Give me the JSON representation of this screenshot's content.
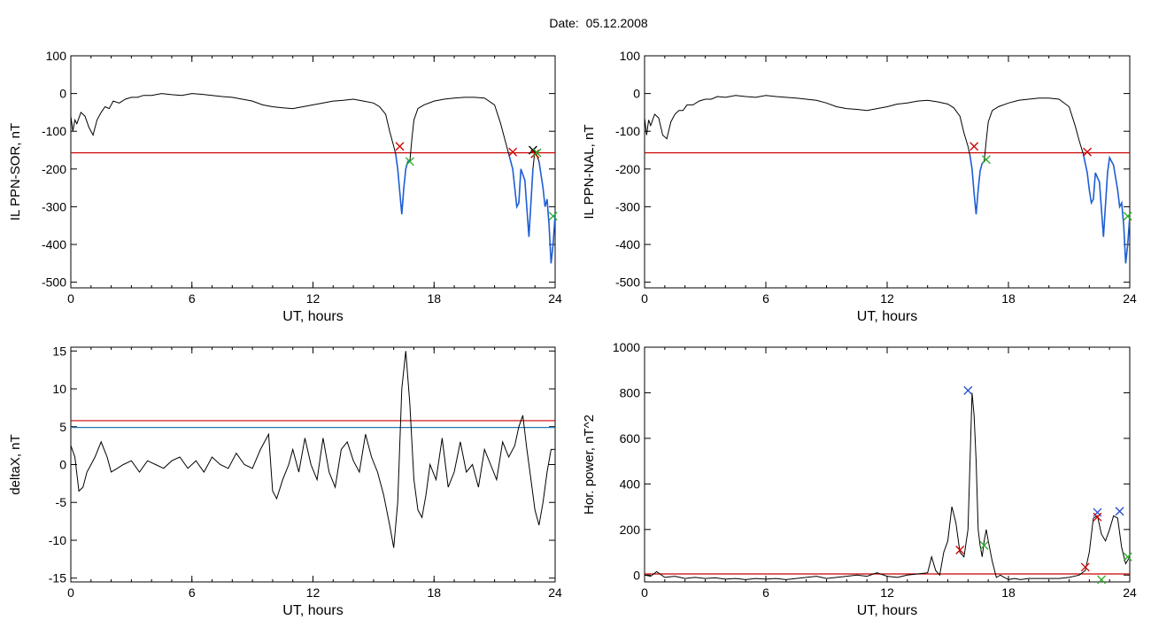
{
  "page": {
    "title": "Date:  05.12.2008"
  },
  "chart_data": [
    {
      "id": "p1",
      "type": "line",
      "xlabel": "UT, hours",
      "ylabel": "IL PPN-SOR, nT",
      "xlim": [
        0,
        24
      ],
      "ylim": [
        -515,
        100
      ],
      "xticks": [
        0,
        6,
        12,
        18,
        24
      ],
      "yticks": [
        -500,
        -400,
        -300,
        -200,
        -100,
        0,
        100
      ],
      "threshold_lines": [
        {
          "y": -157,
          "color": "#cc0000"
        }
      ],
      "series": [
        {
          "color": "#000000",
          "x": [
            0,
            0.1,
            0.2,
            0.3,
            0.5,
            0.7,
            0.9,
            1.1,
            1.3,
            1.5,
            1.7,
            1.9,
            2.1,
            2.4,
            2.7,
            3.0,
            3.3,
            3.6,
            4.0,
            4.5,
            5.0,
            5.5,
            6.0,
            6.5,
            7.0,
            7.5,
            8.0,
            8.5,
            9.0,
            9.5,
            10.0,
            10.5,
            11.0,
            11.5,
            12.0,
            12.5,
            13.0,
            13.5,
            14.0,
            14.5,
            15.0,
            15.3,
            15.6,
            15.8,
            16.0,
            16.1,
            16.2,
            16.3,
            16.4,
            16.5,
            16.6,
            16.7,
            16.8,
            16.9,
            17.0,
            17.2,
            17.5,
            18.0,
            18.5,
            19.0,
            19.5,
            20.0,
            20.5,
            21.0,
            21.3,
            21.5,
            21.7,
            21.9,
            22.0,
            22.1,
            22.2,
            22.3,
            22.5,
            22.7,
            22.9,
            23.0,
            23.2,
            23.4,
            23.5,
            23.6,
            23.7,
            23.8,
            23.9,
            24.0
          ],
          "y": [
            -60,
            -100,
            -70,
            -80,
            -50,
            -60,
            -90,
            -110,
            -70,
            -50,
            -35,
            -40,
            -20,
            -25,
            -15,
            -10,
            -10,
            -5,
            -5,
            0,
            -3,
            -5,
            0,
            -2,
            -5,
            -8,
            -10,
            -15,
            -20,
            -30,
            -35,
            -38,
            -40,
            -35,
            -30,
            -25,
            -20,
            -18,
            -15,
            -20,
            -25,
            -35,
            -55,
            -100,
            -140,
            -160,
            -200,
            -260,
            -320,
            -250,
            -200,
            -180,
            -180,
            -120,
            -70,
            -40,
            -30,
            -20,
            -15,
            -12,
            -10,
            -10,
            -12,
            -30,
            -80,
            -120,
            -160,
            -200,
            -250,
            -300,
            -290,
            -200,
            -230,
            -380,
            -200,
            -150,
            -180,
            -250,
            -300,
            -280,
            -350,
            -450,
            -400,
            -320
          ]
        }
      ],
      "markers": [
        {
          "x": 16.3,
          "y": -140,
          "color": "#cc0000"
        },
        {
          "x": 16.8,
          "y": -180,
          "color": "#22aa22"
        },
        {
          "x": 21.9,
          "y": -155,
          "color": "#cc0000"
        },
        {
          "x": 22.9,
          "y": -150,
          "color": "#000000"
        },
        {
          "x": 23.0,
          "y": -160,
          "color": "#cc0000"
        },
        {
          "x": 23.1,
          "y": -157,
          "color": "#22aa22"
        },
        {
          "x": 23.9,
          "y": -325,
          "color": "#22aa22"
        }
      ]
    },
    {
      "id": "p2",
      "type": "line",
      "xlabel": "UT, hours",
      "ylabel": "IL PPN-NAL, nT",
      "xlim": [
        0,
        24
      ],
      "ylim": [
        -515,
        100
      ],
      "xticks": [
        0,
        6,
        12,
        18,
        24
      ],
      "yticks": [
        -500,
        -400,
        -300,
        -200,
        -100,
        0,
        100
      ],
      "threshold_lines": [
        {
          "y": -157,
          "color": "#cc0000"
        }
      ],
      "series": [
        {
          "color": "#000000",
          "x": [
            0,
            0.1,
            0.2,
            0.3,
            0.5,
            0.7,
            0.9,
            1.1,
            1.3,
            1.5,
            1.7,
            1.9,
            2.1,
            2.4,
            2.7,
            3.0,
            3.3,
            3.6,
            4.0,
            4.5,
            5.0,
            5.5,
            6.0,
            6.5,
            7.0,
            7.5,
            8.0,
            8.5,
            9.0,
            9.5,
            10.0,
            10.5,
            11.0,
            11.5,
            12.0,
            12.5,
            13.0,
            13.5,
            14.0,
            14.5,
            15.0,
            15.3,
            15.6,
            15.8,
            16.0,
            16.1,
            16.2,
            16.3,
            16.4,
            16.5,
            16.6,
            16.7,
            16.8,
            16.9,
            17.0,
            17.2,
            17.5,
            18.0,
            18.5,
            19.0,
            19.5,
            20.0,
            20.5,
            21.0,
            21.3,
            21.5,
            21.7,
            21.9,
            22.0,
            22.1,
            22.2,
            22.3,
            22.5,
            22.7,
            22.9,
            23.0,
            23.2,
            23.4,
            23.5,
            23.6,
            23.7,
            23.8,
            23.9,
            24.0
          ],
          "y": [
            -65,
            -110,
            -70,
            -85,
            -55,
            -65,
            -110,
            -120,
            -75,
            -55,
            -45,
            -45,
            -30,
            -30,
            -20,
            -15,
            -15,
            -8,
            -10,
            -5,
            -8,
            -10,
            -5,
            -8,
            -10,
            -12,
            -15,
            -18,
            -25,
            -35,
            -40,
            -42,
            -45,
            -40,
            -35,
            -28,
            -25,
            -20,
            -18,
            -22,
            -28,
            -38,
            -60,
            -105,
            -140,
            -165,
            -200,
            -265,
            -320,
            -255,
            -205,
            -185,
            -180,
            -125,
            -75,
            -45,
            -35,
            -25,
            -18,
            -15,
            -12,
            -12,
            -15,
            -35,
            -85,
            -125,
            -160,
            -210,
            -255,
            -290,
            -280,
            -210,
            -235,
            -380,
            -210,
            -170,
            -190,
            -255,
            -300,
            -290,
            -350,
            -450,
            -400,
            -325
          ]
        }
      ],
      "markers": [
        {
          "x": 16.3,
          "y": -140,
          "color": "#cc0000"
        },
        {
          "x": 16.9,
          "y": -175,
          "color": "#22aa22"
        },
        {
          "x": 21.9,
          "y": -155,
          "color": "#cc0000"
        },
        {
          "x": 23.9,
          "y": -325,
          "color": "#22aa22"
        }
      ]
    },
    {
      "id": "p3",
      "type": "line",
      "xlabel": "UT, hours",
      "ylabel": "deltaX, nT",
      "xlim": [
        0,
        24
      ],
      "ylim": [
        -15.5,
        15.5
      ],
      "xticks": [
        0,
        6,
        12,
        18,
        24
      ],
      "yticks": [
        -15,
        -10,
        -5,
        0,
        5,
        10,
        15
      ],
      "threshold_lines": [
        {
          "y": 5.8,
          "color": "#cc0000"
        },
        {
          "y": 4.9,
          "color": "#1f77b4"
        }
      ],
      "series": [
        {
          "color": "#000000",
          "x": [
            0,
            0.2,
            0.4,
            0.6,
            0.8,
            1.0,
            1.2,
            1.5,
            1.8,
            2.0,
            2.3,
            2.6,
            3.0,
            3.4,
            3.8,
            4.2,
            4.6,
            5.0,
            5.4,
            5.8,
            6.2,
            6.6,
            7.0,
            7.4,
            7.8,
            8.2,
            8.6,
            9.0,
            9.4,
            9.8,
            10.0,
            10.2,
            10.5,
            10.8,
            11.0,
            11.3,
            11.6,
            11.9,
            12.2,
            12.5,
            12.8,
            13.1,
            13.4,
            13.7,
            14.0,
            14.3,
            14.6,
            14.9,
            15.2,
            15.5,
            15.8,
            16.0,
            16.2,
            16.4,
            16.6,
            16.8,
            17.0,
            17.2,
            17.4,
            17.6,
            17.8,
            18.1,
            18.4,
            18.7,
            19.0,
            19.3,
            19.6,
            19.9,
            20.2,
            20.5,
            20.8,
            21.1,
            21.4,
            21.7,
            22.0,
            22.2,
            22.4,
            22.6,
            22.8,
            23.0,
            23.2,
            23.4,
            23.6,
            23.8,
            24.0
          ],
          "y": [
            2.5,
            1,
            -3.5,
            -3,
            -1,
            0,
            1,
            3,
            1,
            -1,
            -0.5,
            0,
            0.5,
            -1,
            0.5,
            0,
            -0.5,
            0.5,
            1,
            -0.5,
            0.5,
            -1,
            1,
            0,
            -0.5,
            1.5,
            0,
            -0.5,
            2,
            4,
            -3.5,
            -4.5,
            -2,
            0,
            2,
            -1,
            3.5,
            0,
            -2,
            3.5,
            -1,
            -3,
            2,
            3,
            0.5,
            -1,
            4,
            1,
            -1,
            -4,
            -8,
            -11,
            -5,
            10,
            15,
            8,
            -2,
            -6,
            -7,
            -4,
            0,
            -2,
            3.5,
            -3,
            -1,
            3,
            -1,
            0,
            -3,
            2,
            0,
            -2,
            3,
            1,
            2.5,
            5,
            6.5,
            2,
            -2,
            -6,
            -8,
            -5,
            -1,
            2,
            2
          ]
        }
      ],
      "markers": []
    },
    {
      "id": "p4",
      "type": "line",
      "xlabel": "UT, hours",
      "ylabel": "Hor. power, nT^2",
      "xlim": [
        0,
        24
      ],
      "ylim": [
        -30,
        1000
      ],
      "xticks": [
        0,
        6,
        12,
        18,
        24
      ],
      "yticks": [
        0,
        200,
        400,
        600,
        800,
        1000
      ],
      "threshold_lines": [
        {
          "y": 5,
          "color": "#cc0000"
        }
      ],
      "series": [
        {
          "color": "#000000",
          "x": [
            0,
            0.3,
            0.6,
            1.0,
            1.5,
            2.0,
            2.5,
            3.0,
            3.5,
            4.0,
            4.5,
            5.0,
            5.5,
            6.0,
            6.5,
            7.0,
            7.5,
            8.0,
            8.5,
            9.0,
            9.5,
            10.0,
            10.5,
            11.0,
            11.5,
            12.0,
            12.5,
            13.0,
            13.5,
            14.0,
            14.2,
            14.4,
            14.6,
            14.8,
            15.0,
            15.2,
            15.4,
            15.6,
            15.8,
            16.0,
            16.1,
            16.2,
            16.3,
            16.4,
            16.5,
            16.6,
            16.7,
            16.8,
            16.9,
            17.0,
            17.2,
            17.4,
            17.6,
            17.8,
            18.0,
            18.3,
            18.6,
            19.0,
            19.5,
            20.0,
            20.5,
            21.0,
            21.5,
            21.8,
            22.0,
            22.2,
            22.4,
            22.6,
            22.8,
            23.0,
            23.2,
            23.4,
            23.6,
            23.8,
            24.0
          ],
          "y": [
            0,
            -5,
            15,
            -10,
            -5,
            -15,
            -10,
            -15,
            -12,
            -18,
            -15,
            -20,
            -15,
            -18,
            -15,
            -20,
            -15,
            -10,
            -5,
            -15,
            -10,
            -5,
            0,
            -5,
            10,
            -5,
            -10,
            0,
            5,
            10,
            80,
            20,
            0,
            100,
            150,
            300,
            230,
            100,
            80,
            200,
            500,
            800,
            700,
            500,
            200,
            130,
            80,
            150,
            200,
            150,
            60,
            -10,
            0,
            -10,
            -20,
            -15,
            -20,
            -15,
            -15,
            -15,
            -15,
            -10,
            0,
            20,
            100,
            250,
            260,
            180,
            150,
            200,
            260,
            250,
            120,
            50,
            80
          ]
        }
      ],
      "markers": [
        {
          "x": 16.0,
          "y": 810,
          "color": "#1f4fcc"
        },
        {
          "x": 15.6,
          "y": 110,
          "color": "#cc0000"
        },
        {
          "x": 16.8,
          "y": 130,
          "color": "#22aa22"
        },
        {
          "x": 22.4,
          "y": 275,
          "color": "#1f4fcc"
        },
        {
          "x": 22.4,
          "y": 255,
          "color": "#cc0000"
        },
        {
          "x": 23.5,
          "y": 280,
          "color": "#1f4fcc"
        },
        {
          "x": 21.8,
          "y": 35,
          "color": "#cc0000"
        },
        {
          "x": 23.9,
          "y": 80,
          "color": "#22aa22"
        },
        {
          "x": 22.6,
          "y": -20,
          "color": "#22aa22"
        }
      ]
    }
  ]
}
